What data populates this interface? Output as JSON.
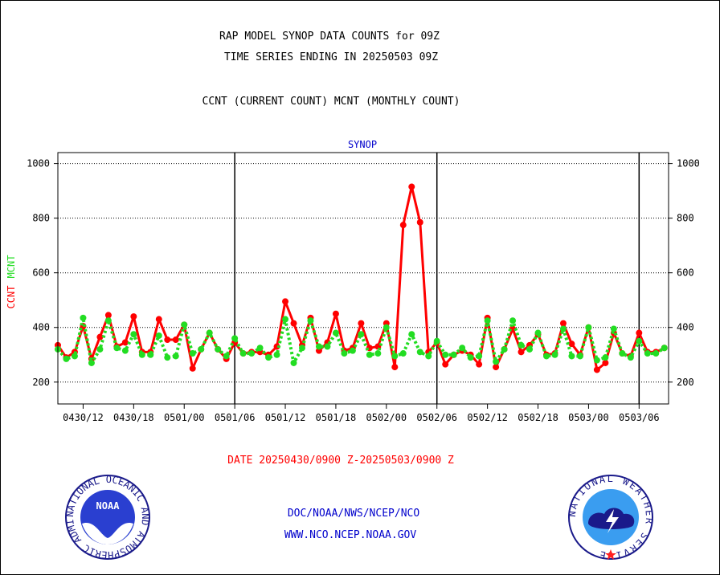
{
  "header": {
    "title_line1": "RAP MODEL SYNOP DATA COUNTS for 09Z",
    "title_line2": "TIME SERIES ENDING IN 20250503 09Z",
    "subtitle": "CCNT (CURRENT COUNT) MCNT (MONTHLY COUNT)"
  },
  "footer": {
    "date_range": "DATE 20250430/0900 Z-20250503/0900 Z",
    "org": "DOC/NOAA/NWS/NCEP/NCO",
    "url": "WWW.NCO.NCEP.NOAA.GOV"
  },
  "logos": {
    "noaa_ring_text": "NATIONAL OCEANIC AND ATMOSPHERIC ADMINISTRATION · U.S. DEPARTMENT OF COMMERCE",
    "noaa_center": "NOAA",
    "nws_ring_text": "NATIONAL WEATHER SERVICE"
  },
  "colors": {
    "ccnt": "#ff0000",
    "mcnt": "#22dd22",
    "plot_label": "#0000cc",
    "date_label": "#ff0000",
    "footer_text": "#0000cc"
  },
  "chart_data": {
    "type": "line",
    "plot_label": "SYNOP",
    "ylabel_ccnt": "CCNT",
    "ylabel_mcnt": "MCNT",
    "ylim": [
      120,
      1040
    ],
    "yticks": [
      200,
      400,
      600,
      800,
      1000
    ],
    "ytick_labels": [
      "200",
      "400",
      "600",
      "800",
      "1000"
    ],
    "x_tick_labels": [
      "0430/12",
      "0430/18",
      "0501/00",
      "0501/06",
      "0501/12",
      "0501/18",
      "0502/00",
      "0502/06",
      "0502/12",
      "0502/18",
      "0503/00",
      "0503/06"
    ],
    "x_tick_hours": [
      3,
      9,
      15,
      21,
      27,
      33,
      39,
      45,
      51,
      57,
      63,
      69
    ],
    "xlim_hours": [
      0,
      72.5
    ],
    "day_boundary_hours": [
      21,
      45,
      69
    ],
    "grid": true,
    "series": [
      {
        "name": "CCNT",
        "x_hours": [
          0,
          1,
          2,
          3,
          4,
          5,
          6,
          7,
          8,
          9,
          10,
          11,
          12,
          13,
          14,
          15,
          16,
          17,
          18,
          19,
          20,
          21,
          22,
          23,
          24,
          25,
          26,
          27,
          28,
          29,
          30,
          31,
          32,
          33,
          34,
          35,
          36,
          37,
          38,
          39,
          40,
          41,
          42,
          43,
          44,
          45,
          46,
          47,
          48,
          49,
          50,
          51,
          52,
          53,
          54,
          55,
          56,
          57,
          58,
          59,
          60,
          61,
          62,
          63,
          64,
          65,
          66,
          67,
          68,
          69,
          70,
          71,
          72
        ],
        "values": [
          335,
          290,
          310,
          405,
          285,
          365,
          445,
          330,
          345,
          440,
          310,
          310,
          430,
          355,
          355,
          410,
          250,
          320,
          380,
          320,
          285,
          345,
          305,
          310,
          310,
          300,
          330,
          495,
          415,
          335,
          435,
          315,
          345,
          450,
          315,
          325,
          415,
          325,
          330,
          415,
          255,
          775,
          915,
          785,
          310,
          345,
          265,
          300,
          315,
          300,
          265,
          435,
          255,
          320,
          395,
          310,
          335,
          375,
          300,
          305,
          415,
          340,
          300,
          400,
          245,
          270,
          380,
          305,
          295,
          380,
          310,
          310,
          325
        ]
      },
      {
        "name": "MCNT",
        "x_hours": [
          0,
          1,
          2,
          3,
          4,
          5,
          6,
          7,
          8,
          9,
          10,
          11,
          12,
          13,
          14,
          15,
          16,
          17,
          18,
          19,
          20,
          21,
          22,
          23,
          24,
          25,
          26,
          27,
          28,
          29,
          30,
          31,
          32,
          33,
          34,
          35,
          36,
          37,
          38,
          39,
          40,
          41,
          42,
          43,
          44,
          45,
          46,
          47,
          48,
          49,
          50,
          51,
          52,
          53,
          54,
          55,
          56,
          57,
          58,
          59,
          60,
          61,
          62,
          63,
          64,
          65,
          66,
          67,
          68,
          69,
          70,
          71,
          72
        ],
        "values": [
          320,
          285,
          295,
          435,
          270,
          320,
          425,
          325,
          315,
          375,
          300,
          300,
          370,
          290,
          295,
          410,
          305,
          320,
          380,
          320,
          295,
          360,
          305,
          305,
          325,
          290,
          300,
          430,
          270,
          325,
          425,
          330,
          330,
          380,
          305,
          315,
          375,
          300,
          305,
          400,
          295,
          305,
          375,
          310,
          295,
          350,
          300,
          300,
          325,
          290,
          295,
          425,
          275,
          320,
          425,
          335,
          320,
          380,
          295,
          300,
          395,
          295,
          295,
          400,
          280,
          290,
          395,
          305,
          290,
          350,
          305,
          305,
          325
        ]
      }
    ]
  }
}
